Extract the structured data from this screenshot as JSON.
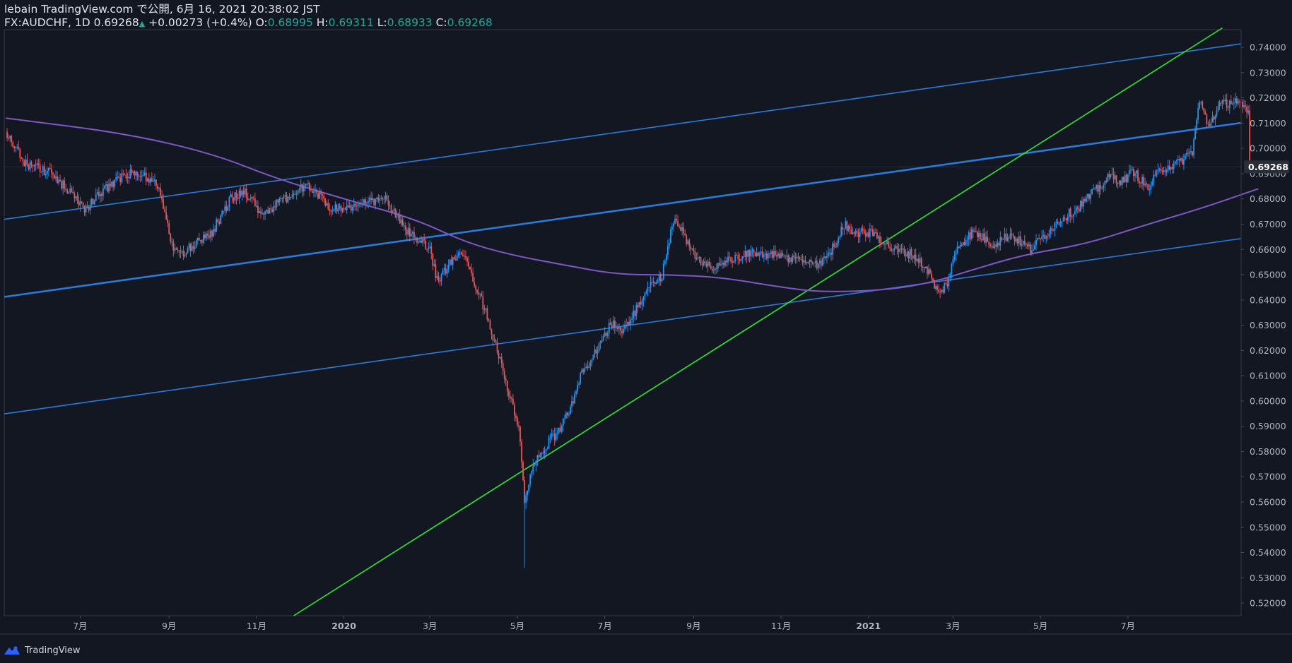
{
  "header": {
    "publish_line": "lebain TradingView.com で公開, 6月 16, 2021 20:38:02 JST",
    "symbol": "FX:AUDCHF, 1D",
    "last": "0.69268",
    "up_arrow": "▲",
    "change": "+0.00273 (+0.4%)",
    "o_label": "O:",
    "o_value": "0.68995",
    "h_label": "H:",
    "h_value": "0.69311",
    "l_label": "L:",
    "l_value": "0.68933",
    "c_label": "C:",
    "c_value": "0.69268"
  },
  "footer": {
    "brand": "TradingView"
  },
  "colors": {
    "background": "#131722",
    "up_candle": "#2196f3",
    "down_candle": "#ef5350",
    "channel_line": "#2a7bd8",
    "trend_line": "#2ee82e",
    "moving_average": "#7e57c2",
    "axis_text": "#b2b5be",
    "price_label_bg": "#2a2e39"
  },
  "chart_data": {
    "type": "candlestick",
    "symbol": "FX:AUDCHF",
    "interval": "1D",
    "ylim": [
      0.515,
      0.747
    ],
    "xlim": [
      "2019-05-09",
      "2021-09-18"
    ],
    "y_ticks": [
      "0.52000",
      "0.53000",
      "0.54000",
      "0.55000",
      "0.56000",
      "0.57000",
      "0.58000",
      "0.59000",
      "0.60000",
      "0.61000",
      "0.62000",
      "0.63000",
      "0.64000",
      "0.65000",
      "0.66000",
      "0.67000",
      "0.68000",
      "0.69000",
      "0.70000",
      "0.71000",
      "0.72000",
      "0.73000",
      "0.74000"
    ],
    "x_ticks": [
      {
        "date": "2019-07-01",
        "label": "7月"
      },
      {
        "date": "2019-09-01",
        "label": "9月"
      },
      {
        "date": "2019-11-01",
        "label": "11月"
      },
      {
        "date": "2020-01-01",
        "label": "2020",
        "bold": true
      },
      {
        "date": "2020-03-01",
        "label": "3月"
      },
      {
        "date": "2020-05-01",
        "label": "5月"
      },
      {
        "date": "2020-07-01",
        "label": "7月"
      },
      {
        "date": "2020-09-01",
        "label": "9月"
      },
      {
        "date": "2020-11-01",
        "label": "11月"
      },
      {
        "date": "2021-01-01",
        "label": "2021",
        "bold": true
      },
      {
        "date": "2021-03-01",
        "label": "3月"
      },
      {
        "date": "2021-05-01",
        "label": "5月"
      },
      {
        "date": "2021-07-01",
        "label": "7月"
      }
    ],
    "last_price": 0.69268,
    "last_price_label": "0.69268",
    "price_path": [
      [
        "2019-05-10",
        0.706
      ],
      [
        "2019-05-24",
        0.694
      ],
      [
        "2019-06-10",
        0.69
      ],
      [
        "2019-06-24",
        0.683
      ],
      [
        "2019-07-05",
        0.676
      ],
      [
        "2019-07-22",
        0.686
      ],
      [
        "2019-08-05",
        0.69
      ],
      [
        "2019-08-19",
        0.688
      ],
      [
        "2019-08-26",
        0.683
      ],
      [
        "2019-09-02",
        0.663
      ],
      [
        "2019-09-09",
        0.657
      ],
      [
        "2019-09-20",
        0.663
      ],
      [
        "2019-10-01",
        0.667
      ],
      [
        "2019-10-14",
        0.68
      ],
      [
        "2019-10-24",
        0.683
      ],
      [
        "2019-11-05",
        0.674
      ],
      [
        "2019-11-18",
        0.679
      ],
      [
        "2019-12-02",
        0.684
      ],
      [
        "2019-12-09",
        0.685
      ],
      [
        "2019-12-23",
        0.676
      ],
      [
        "2020-01-10",
        0.677
      ],
      [
        "2020-01-20",
        0.679
      ],
      [
        "2020-01-30",
        0.68
      ],
      [
        "2020-02-10",
        0.67
      ],
      [
        "2020-02-20",
        0.664
      ],
      [
        "2020-03-01",
        0.66
      ],
      [
        "2020-03-06",
        0.648
      ],
      [
        "2020-03-12",
        0.652
      ],
      [
        "2020-03-20",
        0.658
      ],
      [
        "2020-03-26",
        0.655
      ],
      [
        "2020-04-02",
        0.646
      ],
      [
        "2020-04-09",
        0.635
      ],
      [
        "2020-04-14",
        0.626
      ],
      [
        "2020-04-20",
        0.614
      ],
      [
        "2020-04-27",
        0.599
      ],
      [
        "2020-05-02",
        0.589
      ],
      [
        "2020-05-06",
        0.561
      ],
      [
        "2020-05-11",
        0.572
      ],
      [
        "2020-05-18",
        0.58
      ],
      [
        "2020-05-25",
        0.585
      ],
      [
        "2020-06-01",
        0.59
      ],
      [
        "2020-06-08",
        0.599
      ],
      [
        "2020-06-15",
        0.611
      ],
      [
        "2020-06-22",
        0.617
      ],
      [
        "2020-06-29",
        0.625
      ],
      [
        "2020-07-06",
        0.631
      ],
      [
        "2020-07-13",
        0.627
      ],
      [
        "2020-07-20",
        0.633
      ],
      [
        "2020-07-27",
        0.641
      ],
      [
        "2020-08-03",
        0.646
      ],
      [
        "2020-08-10",
        0.65
      ],
      [
        "2020-08-17",
        0.67
      ],
      [
        "2020-08-21",
        0.671
      ],
      [
        "2020-08-27",
        0.663
      ],
      [
        "2020-09-03",
        0.656
      ],
      [
        "2020-09-15",
        0.653
      ],
      [
        "2020-09-29",
        0.656
      ],
      [
        "2020-10-15",
        0.659
      ],
      [
        "2020-10-30",
        0.657
      ],
      [
        "2020-11-14",
        0.656
      ],
      [
        "2020-11-28",
        0.654
      ],
      [
        "2020-12-09",
        0.662
      ],
      [
        "2020-12-15",
        0.67
      ],
      [
        "2020-12-22",
        0.667
      ],
      [
        "2021-01-06",
        0.666
      ],
      [
        "2021-01-18",
        0.66
      ],
      [
        "2021-02-01",
        0.658
      ],
      [
        "2021-02-11",
        0.652
      ],
      [
        "2021-02-19",
        0.642
      ],
      [
        "2021-02-25",
        0.647
      ],
      [
        "2021-03-04",
        0.661
      ],
      [
        "2021-03-15",
        0.667
      ],
      [
        "2021-03-29",
        0.662
      ],
      [
        "2021-04-10",
        0.666
      ],
      [
        "2021-04-24",
        0.66
      ],
      [
        "2021-05-06",
        0.667
      ],
      [
        "2021-05-15",
        0.672
      ],
      [
        "2021-05-26",
        0.676
      ],
      [
        "2021-06-08",
        0.683
      ],
      [
        "2021-06-19",
        0.689
      ],
      [
        "2021-06-27",
        0.687
      ],
      [
        "2021-07-05",
        0.691
      ],
      [
        "2021-07-15",
        0.684
      ],
      [
        "2021-07-24",
        0.692
      ],
      [
        "2021-08-05",
        0.694
      ],
      [
        "2021-08-15",
        0.699
      ],
      [
        "2021-08-20",
        0.719
      ],
      [
        "2021-08-26",
        0.709
      ],
      [
        "2021-09-03",
        0.717
      ],
      [
        "2021-09-14",
        0.719
      ],
      [
        "2021-09-24",
        0.713
      ]
    ],
    "moving_average": {
      "points": [
        [
          "2019-05-10",
          0.712
        ],
        [
          "2019-08-01",
          0.706
        ],
        [
          "2019-10-01",
          0.698
        ],
        [
          "2019-11-15",
          0.688
        ],
        [
          "2020-01-01",
          0.68
        ],
        [
          "2020-02-20",
          0.672
        ],
        [
          "2020-03-25",
          0.663
        ],
        [
          "2020-04-25",
          0.658
        ],
        [
          "2020-06-01",
          0.654
        ],
        [
          "2020-07-10",
          0.65
        ],
        [
          "2020-08-15",
          0.65
        ],
        [
          "2020-09-20",
          0.649
        ],
        [
          "2020-11-01",
          0.645
        ],
        [
          "2020-12-01",
          0.643
        ],
        [
          "2021-01-15",
          0.644
        ],
        [
          "2021-02-15",
          0.647
        ],
        [
          "2021-03-15",
          0.652
        ],
        [
          "2021-04-20",
          0.658
        ],
        [
          "2021-06-01",
          0.662
        ],
        [
          "2021-07-15",
          0.67
        ],
        [
          "2021-08-20",
          0.676
        ],
        [
          "2021-09-30",
          0.684
        ]
      ]
    },
    "lines": [
      {
        "name": "channel-upper",
        "kind": "channel",
        "from": [
          "2019-05-09",
          0.6719
        ],
        "to": [
          "2021-09-18",
          0.7414
        ],
        "width": 1.6
      },
      {
        "name": "channel-middle",
        "kind": "channel",
        "from": [
          "2019-05-09",
          0.6412
        ],
        "to": [
          "2021-09-18",
          0.7101
        ],
        "width": 2.6
      },
      {
        "name": "channel-lower",
        "kind": "channel",
        "from": [
          "2019-05-09",
          0.5949
        ],
        "to": [
          "2021-09-18",
          0.6643
        ],
        "width": 1.6
      },
      {
        "name": "support-trendline",
        "kind": "trend",
        "from": [
          "2019-11-27",
          0.515
        ],
        "to": [
          "2021-09-05",
          0.7477
        ],
        "width": 1.6
      }
    ],
    "grid": false,
    "legend": "none"
  }
}
